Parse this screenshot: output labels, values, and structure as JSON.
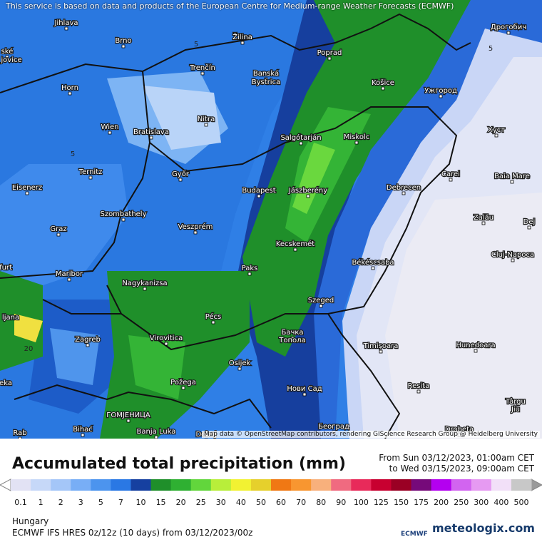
{
  "header": {
    "notice": "This service is based on data and products of the European Centre for Medium-range Weather Forecasts (ECMWF)"
  },
  "map": {
    "attribution": "Map data © OpenStreetMap contributors, rendering GIScience Research Group @ Heidelberg University",
    "cities": [
      "Jihlava",
      "Brno",
      "Žilina",
      "Poprad",
      "Дрогобич",
      "ské",
      "jovice",
      "Trenčín",
      "Banská",
      "Bystrica",
      "Košice",
      "Ужгород",
      "Horn",
      "Nitra",
      "Wien",
      "Bratislava",
      "Salgótarján",
      "Miskolc",
      "Хуст",
      "Ternitz",
      "Győr",
      "Carei",
      "Baia Mare",
      "Eisenerz",
      "Budapest",
      "Jászberény",
      "Debrecen",
      "Szombathely",
      "Zalău",
      "Graz",
      "Veszprém",
      "Dej",
      "Kecskemét",
      "Cluj-Napoca",
      "furt",
      "Maribor",
      "Paks",
      "Békéscsaba",
      "Nagykanizsa",
      "ljana",
      "Pécs",
      "Szeged",
      "Бачка",
      "Топола",
      "Zagreb",
      "Virovitica",
      "Timișoara",
      "Hunedoara",
      "Osijek",
      "eka",
      "Požega",
      "Resita",
      "Нови Сад",
      "Târgu",
      "Jiu",
      "ГОМЈЕНИЦА",
      "Bihać",
      "Banja Luka",
      "Doboj",
      "Београд",
      "Drobeta",
      "Rab"
    ],
    "contour_labels": [
      "5",
      "5",
      "5",
      "20"
    ]
  },
  "footer": {
    "title": "Accumulated total precipitation (mm)",
    "date_from": "From Sun 03/12/2023, 01:00am CET",
    "date_to": "to Wed 03/15/2023, 09:00am CET",
    "legend": [
      {
        "label": "0.1",
        "color": "#e2e2f4"
      },
      {
        "label": "1",
        "color": "#c6d8f8"
      },
      {
        "label": "2",
        "color": "#a4c6f8"
      },
      {
        "label": "3",
        "color": "#78aef6"
      },
      {
        "label": "5",
        "color": "#4c94ee"
      },
      {
        "label": "7",
        "color": "#2a78e4"
      },
      {
        "label": "10",
        "color": "#1640a0"
      },
      {
        "label": "15",
        "color": "#1f8f2a"
      },
      {
        "label": "20",
        "color": "#2fb032"
      },
      {
        "label": "25",
        "color": "#62d63c"
      },
      {
        "label": "30",
        "color": "#b8ee3a"
      },
      {
        "label": "40",
        "color": "#f2f232"
      },
      {
        "label": "50",
        "color": "#e6d02c"
      },
      {
        "label": "60",
        "color": "#f07814"
      },
      {
        "label": "70",
        "color": "#f89630"
      },
      {
        "label": "80",
        "color": "#f8b07c"
      },
      {
        "label": "90",
        "color": "#f06a80"
      },
      {
        "label": "100",
        "color": "#e82a5a"
      },
      {
        "label": "125",
        "color": "#c80030"
      },
      {
        "label": "150",
        "color": "#9a0024"
      },
      {
        "label": "175",
        "color": "#760a7a"
      },
      {
        "label": "200",
        "color": "#b400f0"
      },
      {
        "label": "250",
        "color": "#d264f0"
      },
      {
        "label": "300",
        "color": "#e69af2"
      },
      {
        "label": "400",
        "color": "#f2e0f8"
      },
      {
        "label": "500",
        "color": "#c8c8c8"
      }
    ],
    "region": "Hungary",
    "model": "ECMWF IFS HRES 0z/12z (10 days) from  03/12/2023/00z",
    "logo_ecmwf": "ECMWF",
    "logo_meteologix": "meteologix.com"
  }
}
